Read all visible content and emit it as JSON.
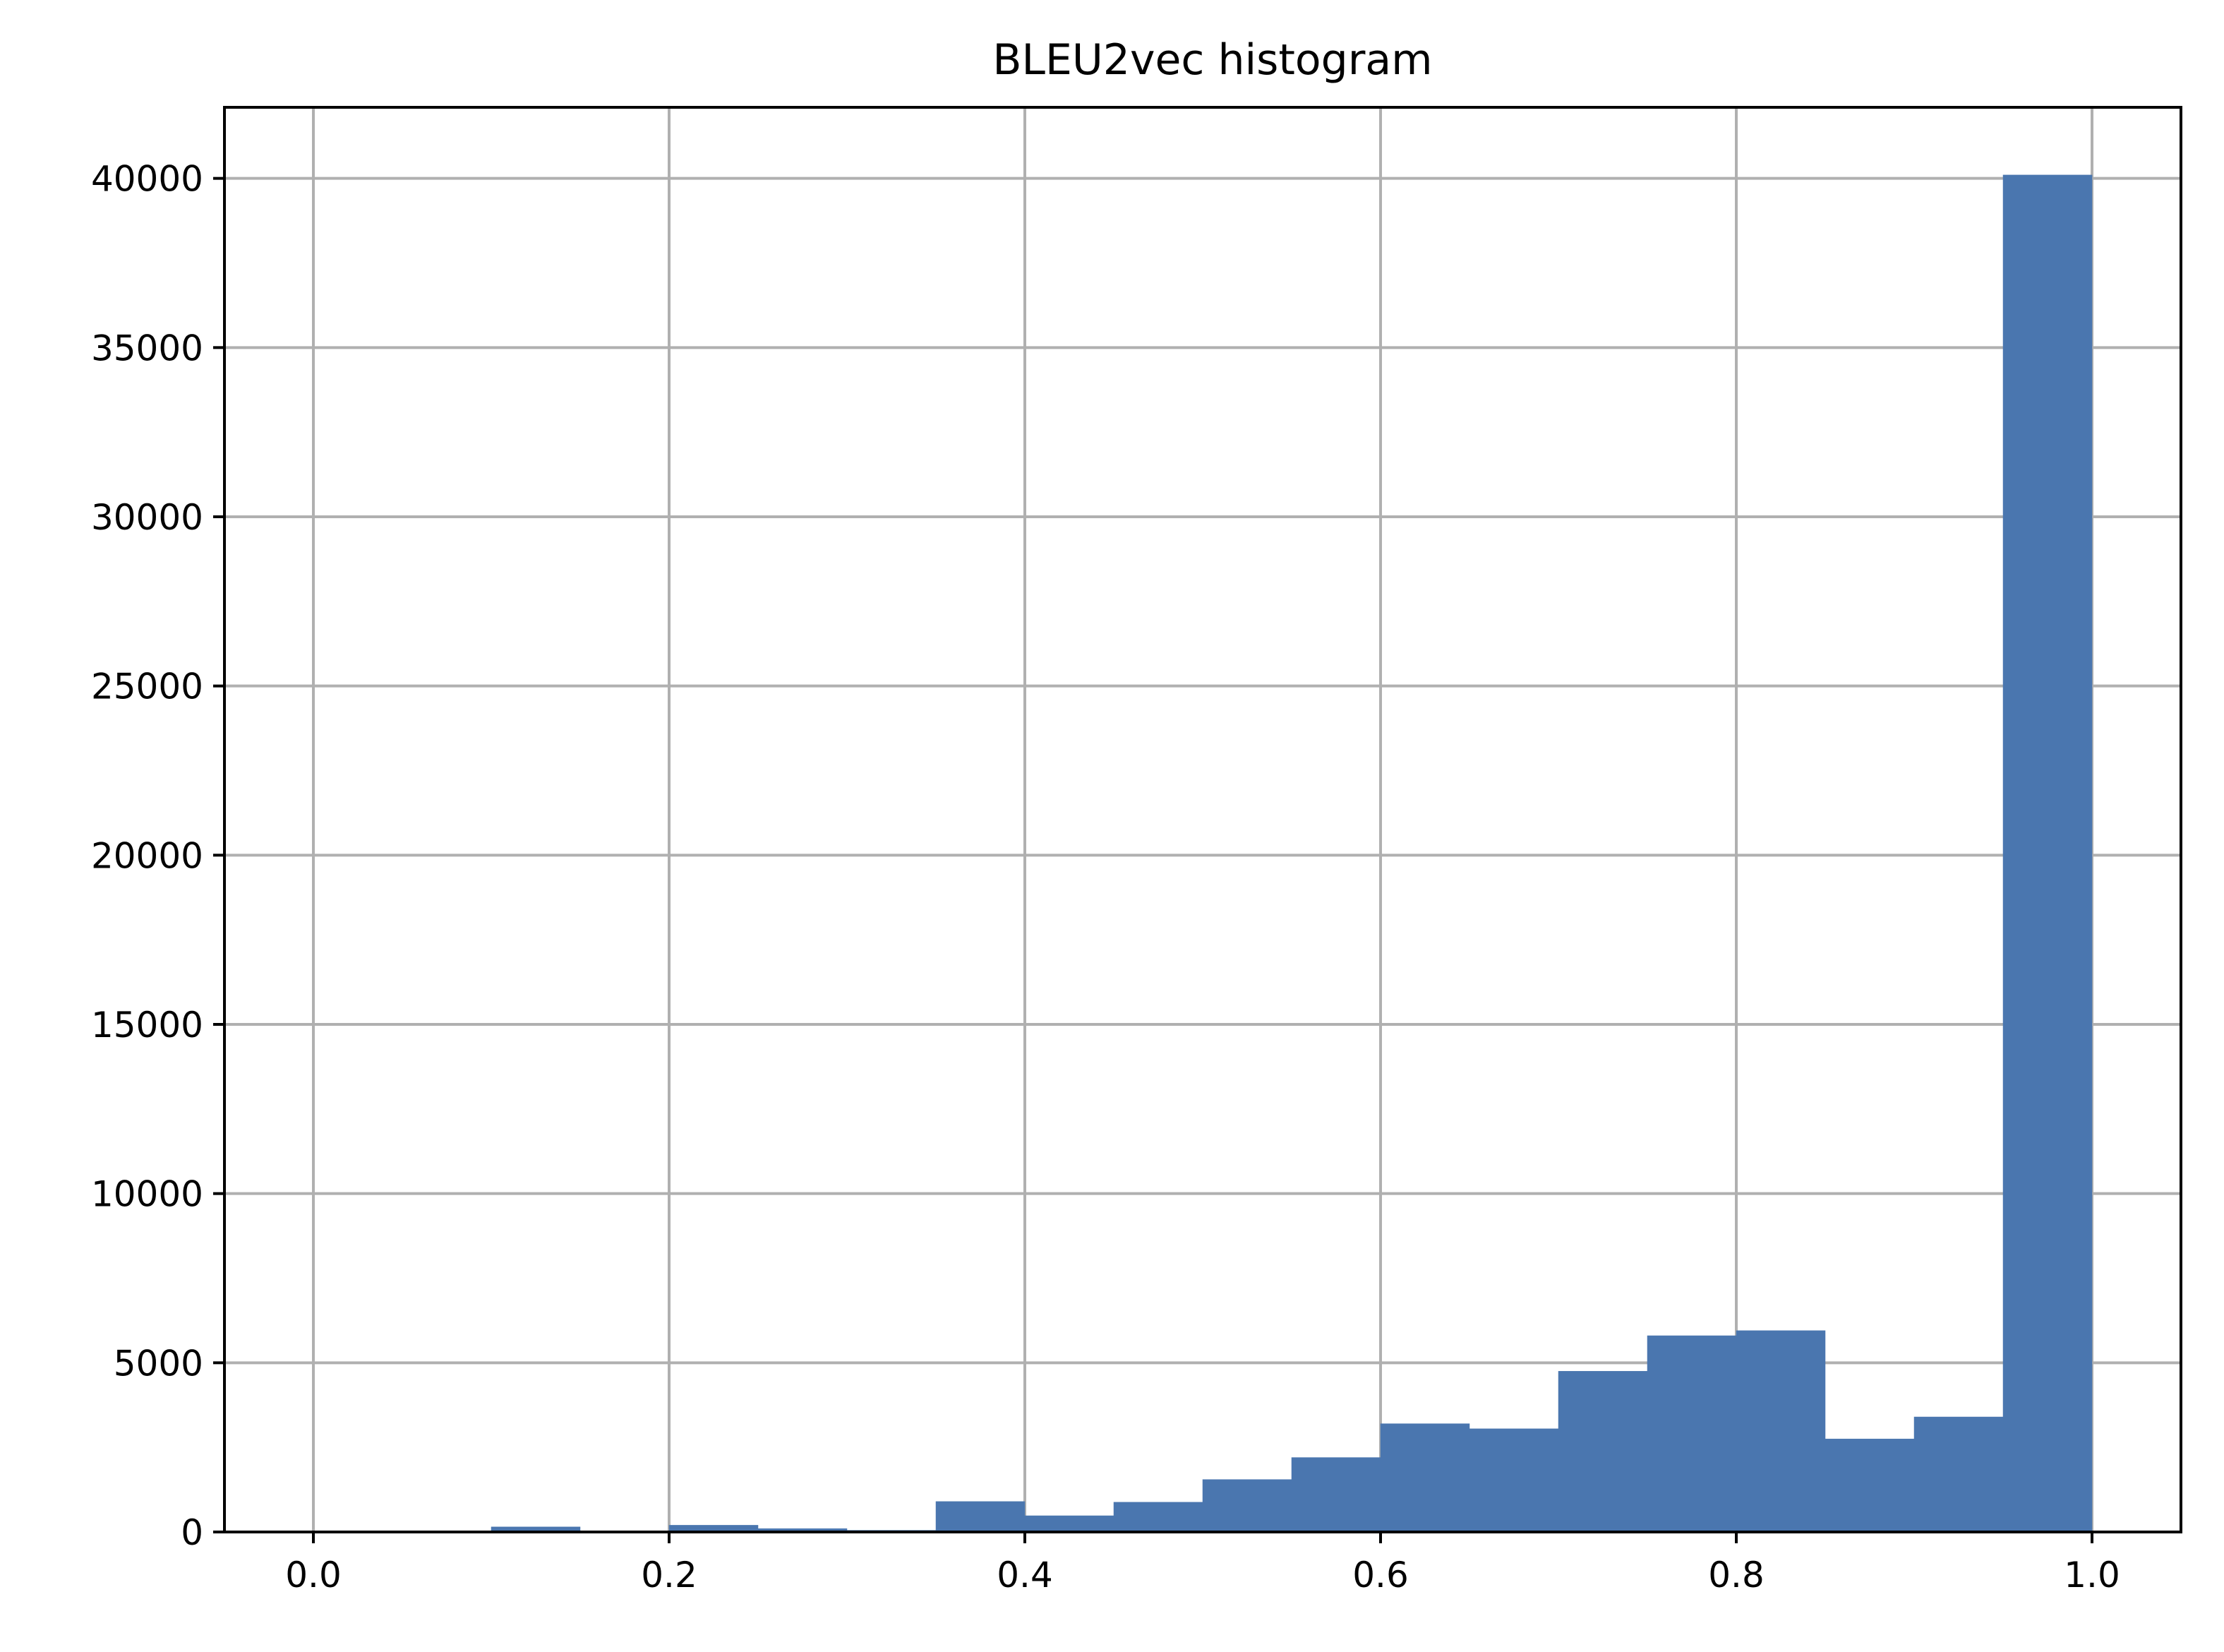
{
  "chart_data": {
    "type": "bar",
    "title": "BLEU2vec histogram",
    "xlabel": "",
    "ylabel": "",
    "xlim": [
      -0.05,
      1.05
    ],
    "ylim": [
      0,
      42100
    ],
    "grid": true,
    "bar_color": "#4a76af",
    "x_ticks": [
      0.0,
      0.2,
      0.4,
      0.6,
      0.8,
      1.0
    ],
    "x_tick_labels": [
      "0.0",
      "0.2",
      "0.4",
      "0.6",
      "0.8",
      "1.0"
    ],
    "y_ticks": [
      0,
      5000,
      10000,
      15000,
      20000,
      25000,
      30000,
      35000,
      40000
    ],
    "y_tick_labels": [
      "0",
      "5000",
      "10000",
      "15000",
      "20000",
      "25000",
      "30000",
      "35000",
      "40000"
    ],
    "bins": [
      {
        "x0": 0.0,
        "x1": 0.05,
        "count": 0
      },
      {
        "x0": 0.05,
        "x1": 0.1,
        "count": 0
      },
      {
        "x0": 0.1,
        "x1": 0.15,
        "count": 150
      },
      {
        "x0": 0.15,
        "x1": 0.2,
        "count": 0
      },
      {
        "x0": 0.2,
        "x1": 0.25,
        "count": 200
      },
      {
        "x0": 0.25,
        "x1": 0.3,
        "count": 100
      },
      {
        "x0": 0.3,
        "x1": 0.35,
        "count": 50
      },
      {
        "x0": 0.35,
        "x1": 0.4,
        "count": 900
      },
      {
        "x0": 0.4,
        "x1": 0.45,
        "count": 480
      },
      {
        "x0": 0.45,
        "x1": 0.5,
        "count": 880
      },
      {
        "x0": 0.5,
        "x1": 0.55,
        "count": 1550
      },
      {
        "x0": 0.55,
        "x1": 0.6,
        "count": 2200
      },
      {
        "x0": 0.6,
        "x1": 0.65,
        "count": 3200
      },
      {
        "x0": 0.65,
        "x1": 0.7,
        "count": 3050
      },
      {
        "x0": 0.7,
        "x1": 0.75,
        "count": 4750
      },
      {
        "x0": 0.75,
        "x1": 0.8,
        "count": 5800
      },
      {
        "x0": 0.8,
        "x1": 0.85,
        "count": 5950
      },
      {
        "x0": 0.85,
        "x1": 0.9,
        "count": 2750
      },
      {
        "x0": 0.9,
        "x1": 0.95,
        "count": 3400
      },
      {
        "x0": 0.95,
        "x1": 1.0,
        "count": 40100
      }
    ]
  }
}
